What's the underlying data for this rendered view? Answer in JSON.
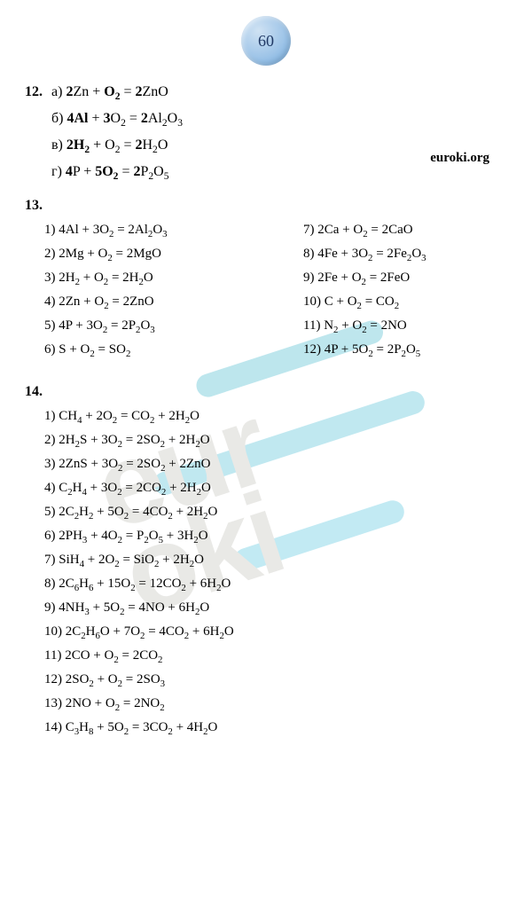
{
  "page_number": "60",
  "watermark_link": "euroki.org",
  "watermark_rotated": "eur\noki",
  "q12": {
    "number": "12.",
    "items": [
      {
        "letter": "а)",
        "html": "<span class='bold'>2</span>Zn + <span class='bold'>O<sub>2</sub></span> = <span class='bold'>2</span>ZnO"
      },
      {
        "letter": "б)",
        "html": "<span class='bold'>4Al</span> + <span class='bold'>3</span>O<sub>2</sub> = <span class='bold'>2</span>Al<sub>2</sub>O<sub>3</sub>"
      },
      {
        "letter": "в)",
        "html": "<span class='bold'>2H<sub>2</sub></span> + O<sub>2</sub> = <span class='bold'>2</span>H<sub>2</sub>O"
      },
      {
        "letter": "г)",
        "html": "<span class='bold'>4</span>P + <span class='bold'>5O<sub>2</sub></span> = <span class='bold'>2</span>P<sub>2</sub>O<sub>5</sub>"
      }
    ]
  },
  "q13": {
    "number": "13.",
    "left": [
      "1)  4Al + 3O<sub>2</sub> = 2Al<sub>2</sub>O<sub>3</sub>",
      "2)  2Mg + O<sub>2</sub> = 2MgO",
      "3)  2H<sub>2</sub> + O<sub>2</sub> = 2H<sub>2</sub>O",
      "4)  2Zn + O<sub>2</sub> = 2ZnO",
      "5)  4P + 3O<sub>2</sub> = 2P<sub>2</sub>O<sub>3</sub>",
      "6)  S + O<sub>2</sub> = SO<sub>2</sub>"
    ],
    "right": [
      "7)  2Ca + O<sub>2</sub> = 2CaO",
      "8)  4Fe + 3O<sub>2</sub> = 2Fe<sub>2</sub>O<sub>3</sub>",
      "9)  2Fe + O<sub>2</sub> = 2FeO",
      "10) C + O<sub>2</sub> = CO<sub>2</sub>",
      "11) N<sub>2</sub> + O<sub>2</sub> = 2NO",
      "12) 4P + 5O<sub>2</sub> = 2P<sub>2</sub>O<sub>5</sub>"
    ]
  },
  "q14": {
    "number": "14.",
    "items": [
      "1)  CH<sub>4</sub> + 2O<sub>2</sub> = CO<sub>2</sub> + 2H<sub>2</sub>O",
      "2)  2H<sub>2</sub>S + 3O<sub>2</sub> = 2SO<sub>2</sub> + 2H<sub>2</sub>O",
      "3)  2ZnS + 3O<sub>2</sub> = 2SO<sub>2</sub> + 2ZnO",
      "4)  C<sub>2</sub>H<sub>4</sub> + 3O<sub>2</sub> = 2CO<sub>2</sub> + 2H<sub>2</sub>O",
      "5)  2C<sub>2</sub>H<sub>2</sub> + 5O<sub>2</sub> = 4CO<sub>2</sub> + 2H<sub>2</sub>O",
      "6)  2PH<sub>3</sub> + 4O<sub>2</sub> = P<sub>2</sub>O<sub>5</sub> + 3H<sub>2</sub>O",
      "7)  SiH<sub>4</sub> + 2O<sub>2</sub> = SiO<sub>2</sub> + 2H<sub>2</sub>O",
      "8)  2C<sub>6</sub>H<sub>6</sub> + 15O<sub>2</sub> = 12CO<sub>2</sub> + 6H<sub>2</sub>O",
      "9)  4NH<sub>3</sub> + 5O<sub>2</sub> = 4NO + 6H<sub>2</sub>O",
      "10) 2C<sub>2</sub>H<sub>6</sub>O + 7O<sub>2</sub> = 4CO<sub>2</sub> + 6H<sub>2</sub>O",
      "11) 2CO + O<sub>2</sub> = 2CO<sub>2</sub>",
      "12) 2SO<sub>2</sub> + O<sub>2</sub> = 2SO<sub>3</sub>",
      "13) 2NO + O<sub>2</sub> = 2NO<sub>2</sub>",
      "14) C<sub>3</sub>H<sub>8</sub> + 5O<sub>2</sub> = 3CO<sub>2</sub> + 4H<sub>2</sub>O"
    ]
  }
}
